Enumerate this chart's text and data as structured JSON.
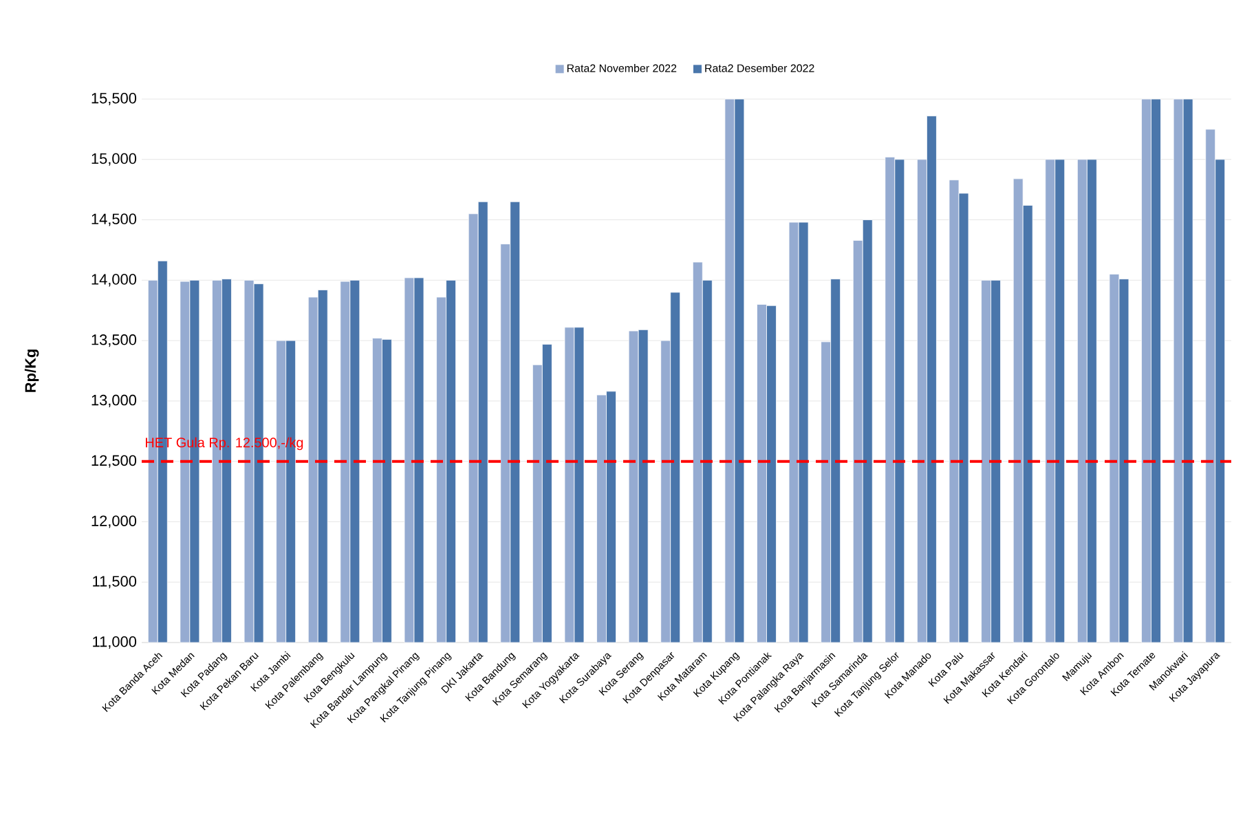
{
  "chart_data": {
    "type": "bar",
    "ylabel": "Rp/Kg",
    "categories": [
      "Kota Banda Aceh",
      "Kota Medan",
      "Kota Padang",
      "Kota Pekan Baru",
      "Kota Jambi",
      "Kota Palembang",
      "Kota Bengkulu",
      "Kota Bandar Lampung",
      "Kota Pangkal Pinang",
      "Kota Tanjung Pinang",
      "DKI Jakarta",
      "Kota Bandung",
      "Kota Semarang",
      "Kota Yogyakarta",
      "Kota Surabaya",
      "Kota Serang",
      "Kota Denpasar",
      "Kota Mataram",
      "Kota Kupang",
      "Kota Pontianak",
      "Kota Palangka Raya",
      "Kota Banjarmasin",
      "Kota Samarinda",
      "Kota Tanjung Selor",
      "Kota Manado",
      "Kota Palu",
      "Kota Makassar",
      "Kota Kendari",
      "Kota Gorontalo",
      "Mamuju",
      "Kota Ambon",
      "Kota Ternate",
      "Manokwari",
      "Kota Jayapura"
    ],
    "series": [
      {
        "name": "Rata2 November 2022",
        "color": "#95abd1",
        "values": [
          14000,
          13990,
          14000,
          14000,
          13500,
          13860,
          13990,
          13520,
          14020,
          13860,
          14550,
          14300,
          13300,
          13610,
          13050,
          13580,
          13500,
          14150,
          15500,
          13800,
          14480,
          13490,
          14330,
          15020,
          15000,
          14830,
          14000,
          14840,
          15000,
          15000,
          14050,
          15500,
          15500,
          15250
        ]
      },
      {
        "name": "Rata2 Desember 2022",
        "color": "#4a76ab",
        "values": [
          14160,
          14000,
          14010,
          13970,
          13500,
          13920,
          14000,
          13510,
          14020,
          14000,
          14650,
          14650,
          13470,
          13610,
          13080,
          13590,
          13900,
          14000,
          15500,
          13790,
          14480,
          14010,
          14500,
          15000,
          15360,
          14720,
          14000,
          14620,
          15000,
          15000,
          14010,
          15500,
          15500,
          15000
        ]
      }
    ],
    "ylim": [
      11000,
      15500
    ],
    "yticks": [
      {
        "value": 11000,
        "label": "11,000"
      },
      {
        "value": 11500,
        "label": "11,500"
      },
      {
        "value": 12000,
        "label": "12,000"
      },
      {
        "value": 12500,
        "label": "12,500"
      },
      {
        "value": 13000,
        "label": "13,000"
      },
      {
        "value": 13500,
        "label": "13,500"
      },
      {
        "value": 14000,
        "label": "14,000"
      },
      {
        "value": 14500,
        "label": "14,500"
      },
      {
        "value": 15000,
        "label": "15,000"
      },
      {
        "value": 15500,
        "label": "15,500"
      }
    ],
    "ref_lines": [
      {
        "axis": "y",
        "value": 12500,
        "label": "HET Gula Rp. 12.500,-/kg",
        "color": "#ff0000",
        "line_style": "dashed"
      }
    ],
    "grid": "y",
    "legend": "top"
  }
}
